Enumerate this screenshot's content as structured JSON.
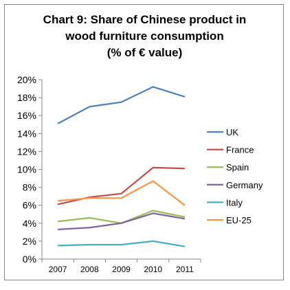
{
  "chart_data": {
    "type": "line",
    "title_lines": [
      "Chart 9: Share of Chinese product in",
      "wood furniture consumption",
      "(% of € value)"
    ],
    "categories": [
      "2007",
      "2008",
      "2009",
      "2010",
      "2011"
    ],
    "ylim": [
      0,
      20
    ],
    "ytick_step": 2,
    "ytick_labels": [
      "0%",
      "2%",
      "4%",
      "6%",
      "8%",
      "10%",
      "12%",
      "14%",
      "16%",
      "18%",
      "20%"
    ],
    "grid": false,
    "legend_position": "right",
    "series": [
      {
        "name": "UK",
        "color": "#4F81BD",
        "values": [
          15.1,
          17.0,
          17.5,
          19.2,
          18.1
        ]
      },
      {
        "name": "France",
        "color": "#C0504D",
        "values": [
          6.1,
          6.9,
          7.3,
          10.2,
          10.1
        ]
      },
      {
        "name": "Spain",
        "color": "#9BBB59",
        "values": [
          4.2,
          4.6,
          4.0,
          5.4,
          4.7
        ]
      },
      {
        "name": "Germany",
        "color": "#8064A2",
        "values": [
          3.3,
          3.5,
          4.0,
          5.1,
          4.5
        ]
      },
      {
        "name": "Italy",
        "color": "#4BACC6",
        "values": [
          1.5,
          1.6,
          1.6,
          2.0,
          1.4
        ]
      },
      {
        "name": "EU-25",
        "color": "#F79646",
        "values": [
          6.5,
          6.8,
          6.8,
          8.7,
          6.0
        ]
      }
    ]
  }
}
